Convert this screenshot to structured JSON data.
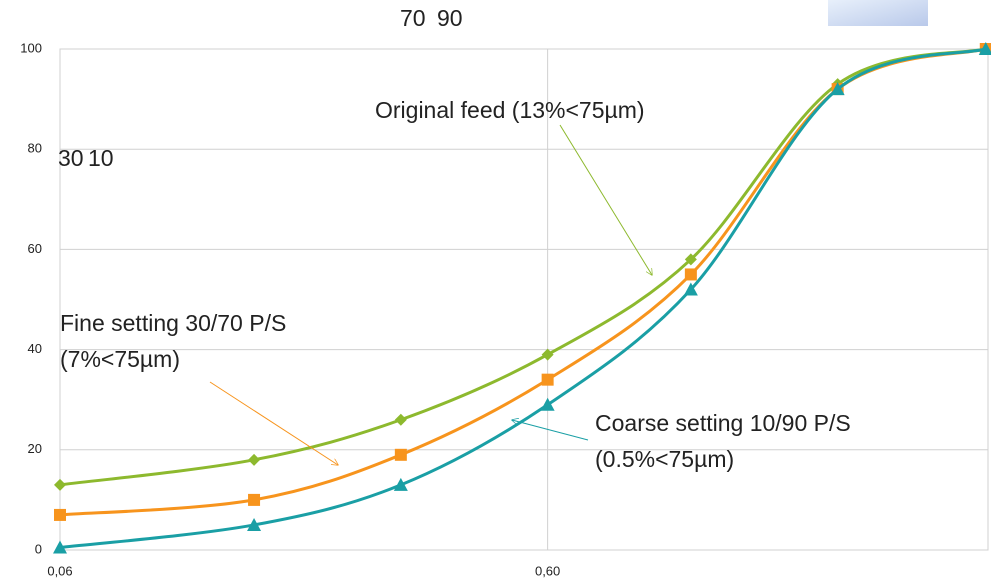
{
  "chart_data": {
    "type": "line",
    "x": [
      0.06,
      0.15,
      0.3,
      0.6,
      1.18,
      2.36,
      4.75
    ],
    "series": [
      {
        "color": "#8db92e",
        "marker": "diamond",
        "values": [
          13,
          18,
          26,
          39,
          58,
          93,
          100
        ]
      },
      {
        "color": "#f7941d",
        "marker": "square",
        "values": [
          7,
          10,
          19,
          34,
          55,
          92,
          100
        ]
      },
      {
        "color": "#1a9fa5",
        "marker": "triangle",
        "values": [
          0.5,
          5,
          13,
          29,
          52,
          92,
          100
        ]
      }
    ],
    "xlog": true,
    "xlim": [
      0.06,
      4.8
    ],
    "xticks": [
      {
        "value": 0.06,
        "label": "0,06"
      },
      {
        "value": 0.6,
        "label": "0,60"
      }
    ],
    "ylim": [
      0,
      100
    ],
    "yticks": [
      0,
      20,
      40,
      60,
      80,
      100
    ],
    "grid": true,
    "annotations": [
      {
        "lines": [
          "Original feed (13%<75µm)"
        ],
        "color": "#8db92e"
      },
      {
        "lines": [
          "Fine setting 30/70 P/S",
          "(7%<75µm)"
        ],
        "color": "#f7941d"
      },
      {
        "lines": [
          "Coarse setting 10/90 P/S",
          "(0.5%<75µm)"
        ],
        "color": "#1a9fa5"
      }
    ],
    "corner_labels": [
      {
        "text": "70",
        "color": "#f7941d"
      },
      {
        "text": "90",
        "color": "#1a9fa5"
      },
      {
        "text": "30",
        "color": "#f7941d"
      },
      {
        "text": "10",
        "color": "#1a9fa5"
      }
    ]
  }
}
